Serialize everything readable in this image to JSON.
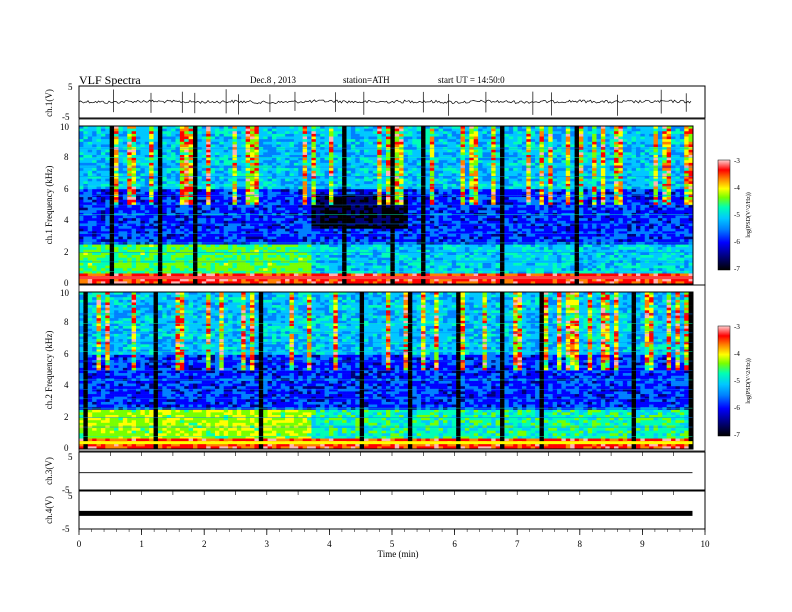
{
  "header": {
    "title": "VLF Spectra",
    "date": "Dec.8 , 2013",
    "station": "station=ATH",
    "start": "start UT = 14:50:0"
  },
  "chart_data": [
    {
      "type": "line",
      "name": "ch1-waveform",
      "ylabel": "ch.1(V)",
      "ylim": [
        -5,
        5
      ],
      "yticks": [
        "5",
        "-5"
      ],
      "xlim": [
        0,
        10
      ],
      "x": [
        0,
        0.5,
        1,
        1.5,
        2,
        2.5,
        3,
        3.5,
        4,
        4.5,
        5,
        5.5,
        6,
        6.5,
        7,
        7.5,
        8,
        8.5,
        9,
        9.5,
        9.8
      ],
      "y": [
        0.2,
        -0.1,
        0.3,
        0.1,
        0.0,
        0.2,
        -0.2,
        0.1,
        0.3,
        0.0,
        0.1,
        0.2,
        -0.1,
        0.2,
        0.0,
        0.1,
        0.3,
        0.0,
        0.1,
        0.2,
        0.1
      ],
      "spikes_x": [
        0.55,
        1.15,
        1.65,
        1.85,
        2.35,
        2.55,
        3.05,
        3.45,
        4.1,
        4.55,
        5.5,
        5.9,
        6.5,
        7.25,
        7.55,
        8.6,
        9.3,
        9.7
      ]
    },
    {
      "type": "heatmap",
      "name": "ch1-spectrogram",
      "ylabel": "ch.1 Frequency (kHz)",
      "ylim": [
        0,
        10
      ],
      "yticks": [
        "0",
        "2",
        "4",
        "6",
        "8",
        "10"
      ],
      "xlim": [
        0,
        10
      ],
      "colorbar": {
        "label": "log(PSD(V^2/Hz))",
        "range": [
          -7,
          -3
        ],
        "ticks": [
          "-3",
          "-4",
          "-5",
          "-6",
          "-7"
        ]
      }
    },
    {
      "type": "heatmap",
      "name": "ch2-spectrogram",
      "ylabel": "ch.2 Frequency (kHz)",
      "ylim": [
        0,
        10
      ],
      "yticks": [
        "0",
        "2",
        "4",
        "6",
        "8",
        "10"
      ],
      "xlim": [
        0,
        10
      ],
      "colorbar": {
        "label": "log(PSD(V^2/Hz))",
        "range": [
          -7,
          -3
        ],
        "ticks": [
          "-3",
          "-4",
          "-5",
          "-6",
          "-7"
        ]
      }
    },
    {
      "type": "line",
      "name": "ch3-waveform",
      "ylabel": "ch.3(V)",
      "ylim": [
        -5,
        5
      ],
      "yticks": [
        "5",
        "-5"
      ],
      "xlim": [
        0,
        10
      ],
      "x": [
        0,
        9.8
      ],
      "y": [
        -0.5,
        -0.5
      ]
    },
    {
      "type": "line",
      "name": "ch4-waveform",
      "ylabel": "ch.4(V)",
      "ylim": [
        -5,
        5
      ],
      "yticks": [
        "5",
        "-5"
      ],
      "xlim": [
        0,
        10
      ],
      "x": [
        0,
        9.8
      ],
      "y": [
        -1,
        -1
      ]
    }
  ],
  "xaxis": {
    "label": "Time (min)",
    "ticks": [
      "0",
      "1",
      "2",
      "3",
      "4",
      "5",
      "6",
      "7",
      "8",
      "9",
      "10"
    ]
  },
  "colors": {
    "spectrogram_scale": [
      "#000000",
      "#00007a",
      "#0000ff",
      "#0080ff",
      "#00c8ff",
      "#00ffb4",
      "#78ff00",
      "#ffff00",
      "#ff8000",
      "#ff0000",
      "#ffb4b4"
    ]
  }
}
